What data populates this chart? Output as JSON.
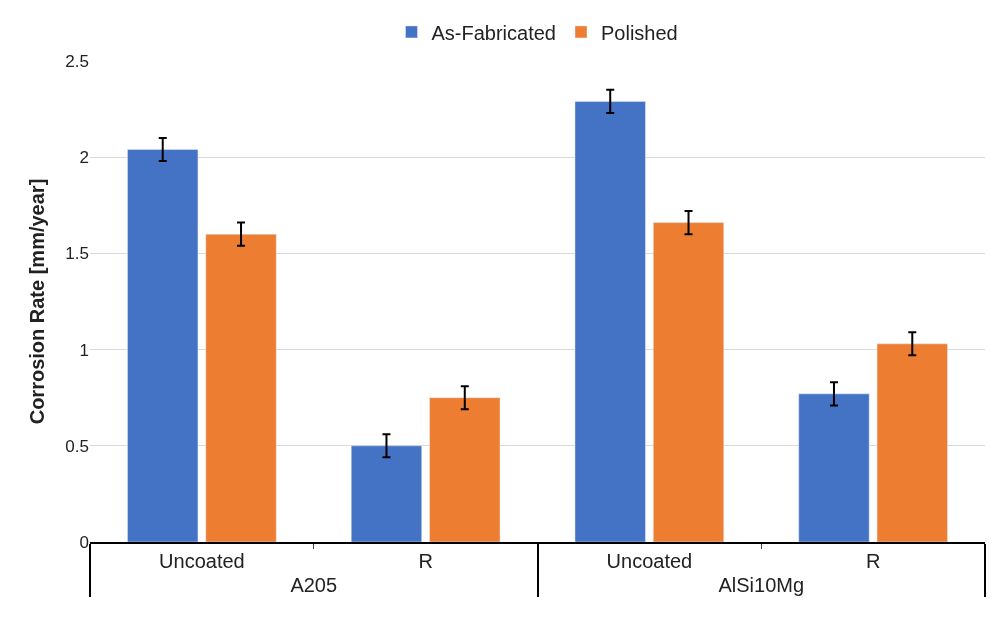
{
  "chart_data": {
    "type": "bar",
    "ylabel": "Corrosion Rate [mm/year]",
    "categories": [
      "Uncoated",
      "R",
      "Uncoated",
      "R"
    ],
    "annotations": [
      "A205",
      "AlSi10Mg"
    ],
    "series": [
      {
        "name": "As-Fabricated",
        "color": "#4472c4",
        "values": [
          2.04,
          0.5,
          2.29,
          0.77
        ],
        "errors": [
          0.06,
          0.06,
          0.06,
          0.06
        ]
      },
      {
        "name": "Polished",
        "color": "#ed7d31",
        "values": [
          1.6,
          0.75,
          1.66,
          1.03
        ],
        "errors": [
          0.06,
          0.06,
          0.06,
          0.06
        ]
      }
    ],
    "ylim": [
      0,
      2.5
    ],
    "yticks": [
      0,
      0.5,
      1,
      1.5,
      2,
      2.5
    ],
    "grid": "y",
    "legend": "top"
  }
}
